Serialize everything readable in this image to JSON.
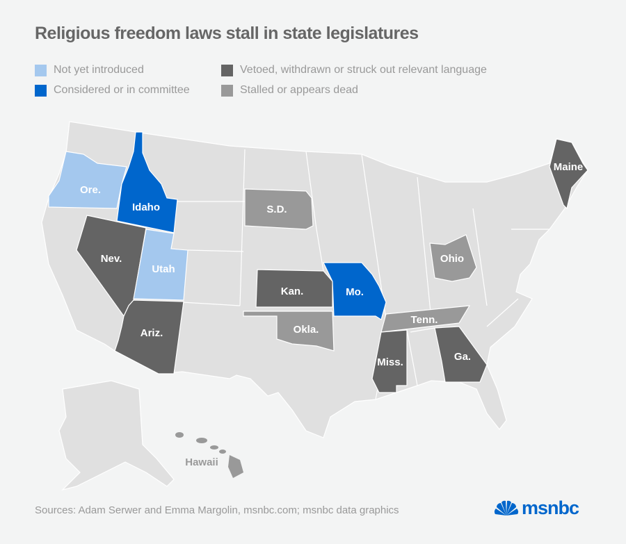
{
  "title": "Religious freedom laws stall in state legislatures",
  "legend": [
    {
      "label": "Not yet introduced",
      "color": "#a4c8ee"
    },
    {
      "label": "Considered or in committee",
      "color": "#0066cc"
    },
    {
      "label": "Vetoed, withdrawn or struck out relevant language",
      "color": "#646464"
    },
    {
      "label": "Stalled or appears dead",
      "color": "#999999"
    }
  ],
  "states": {
    "ore": {
      "label": "Ore.",
      "status": "Not yet introduced"
    },
    "idaho": {
      "label": "Idaho",
      "status": "Considered or in committee"
    },
    "nev": {
      "label": "Nev.",
      "status": "Vetoed, withdrawn or struck out relevant language"
    },
    "utah": {
      "label": "Utah",
      "status": "Not yet introduced"
    },
    "ariz": {
      "label": "Ariz.",
      "status": "Vetoed, withdrawn or struck out relevant language"
    },
    "sd": {
      "label": "S.D.",
      "status": "Stalled or appears dead"
    },
    "kan": {
      "label": "Kan.",
      "status": "Vetoed, withdrawn or struck out relevant language"
    },
    "mo": {
      "label": "Mo.",
      "status": "Considered or in committee"
    },
    "okla": {
      "label": "Okla.",
      "status": "Stalled or appears dead"
    },
    "tenn": {
      "label": "Tenn.",
      "status": "Stalled or appears dead"
    },
    "miss": {
      "label": "Miss.",
      "status": "Vetoed, withdrawn or struck out relevant language"
    },
    "ga": {
      "label": "Ga.",
      "status": "Vetoed, withdrawn or struck out relevant language"
    },
    "ohio": {
      "label": "Ohio",
      "status": "Stalled or appears dead"
    },
    "maine": {
      "label": "Maine",
      "status": "Vetoed, withdrawn or struck out relevant language"
    },
    "hawaii": {
      "label": "Hawaii",
      "status": "Stalled or appears dead"
    }
  },
  "source": "Sources: Adam Serwer and Emma Margolin, msnbc.com; msnbc data graphics",
  "logo": "msnbc"
}
